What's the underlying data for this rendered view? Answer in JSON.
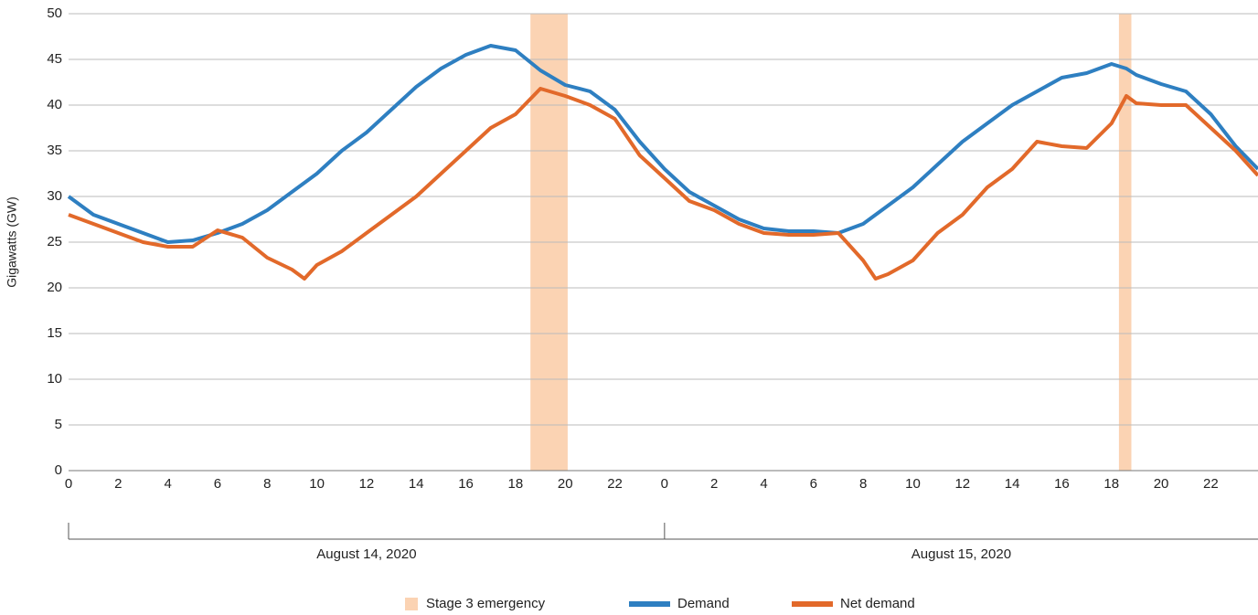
{
  "chart_data": {
    "type": "line",
    "y_label": "Gigawatts (GW)",
    "x": [
      0,
      1,
      2,
      3,
      4,
      5,
      6,
      7,
      8,
      9,
      9.5,
      10,
      11,
      12,
      13,
      14,
      15,
      16,
      17,
      18,
      19,
      20,
      21,
      22,
      23,
      24,
      25,
      26,
      27,
      28,
      29,
      30,
      31,
      32,
      32.5,
      33,
      34,
      35,
      36,
      37,
      38,
      39,
      40,
      41,
      42,
      42.6,
      43,
      44,
      45,
      46,
      47,
      47.9
    ],
    "series": [
      {
        "name": "Demand",
        "color": "#2e7fc1",
        "values": [
          30,
          28,
          27,
          26,
          25,
          25.2,
          26,
          27,
          28.5,
          30.5,
          31.5,
          32.5,
          35,
          37,
          39.5,
          42,
          44,
          45.5,
          46.5,
          46,
          43.8,
          42.2,
          41.5,
          39.5,
          36,
          33,
          30.5,
          29,
          27.5,
          26.5,
          26.2,
          26.2,
          26,
          27,
          28,
          29,
          31,
          33.5,
          36,
          38,
          40,
          41.5,
          43,
          43.5,
          44.5,
          44,
          43.3,
          42.3,
          41.5,
          39,
          35.5,
          33
        ]
      },
      {
        "name": "Net demand",
        "color": "#e2692a",
        "values": [
          28,
          27,
          26,
          25,
          24.5,
          24.5,
          26.3,
          25.5,
          23.3,
          22,
          21,
          22.5,
          24,
          26,
          28,
          30,
          32.5,
          35,
          37.5,
          39,
          41.8,
          41,
          40,
          38.5,
          34.5,
          32,
          29.5,
          28.5,
          27,
          26,
          25.8,
          25.8,
          26,
          23,
          21,
          21.5,
          23,
          26,
          28,
          31,
          33,
          36,
          35.5,
          35.3,
          38,
          41,
          40.2,
          40,
          40,
          37.5,
          35,
          32.3
        ]
      }
    ],
    "emergency": {
      "name": "Stage 3 emergency",
      "color": "#fbd3b3",
      "ranges": [
        [
          18.6,
          20.1
        ],
        [
          42.3,
          42.8
        ]
      ]
    },
    "x_groups": [
      {
        "label": "August 14, 2020",
        "start": 0,
        "end": 24
      },
      {
        "label": "August 15, 2020",
        "start": 24,
        "end": 48
      }
    ],
    "xlim": [
      0,
      47.9
    ],
    "xticks": [
      0,
      2,
      4,
      6,
      8,
      10,
      12,
      14,
      16,
      18,
      20,
      22,
      {
        "value": 24,
        "label": "0"
      },
      {
        "value": 26,
        "label": "2"
      },
      {
        "value": 28,
        "label": "4"
      },
      {
        "value": 30,
        "label": "6"
      },
      {
        "value": 32,
        "label": "8"
      },
      {
        "value": 34,
        "label": "10"
      },
      {
        "value": 36,
        "label": "12"
      },
      {
        "value": 38,
        "label": "14"
      },
      {
        "value": 40,
        "label": "16"
      },
      {
        "value": 42,
        "label": "18"
      },
      {
        "value": 44,
        "label": "20"
      },
      {
        "value": 46,
        "label": "22"
      }
    ],
    "ylim": [
      0,
      50
    ],
    "yticks": [
      0,
      5,
      10,
      15,
      20,
      25,
      30,
      35,
      40,
      45,
      50
    ],
    "grid": true,
    "legend": "bottom"
  }
}
